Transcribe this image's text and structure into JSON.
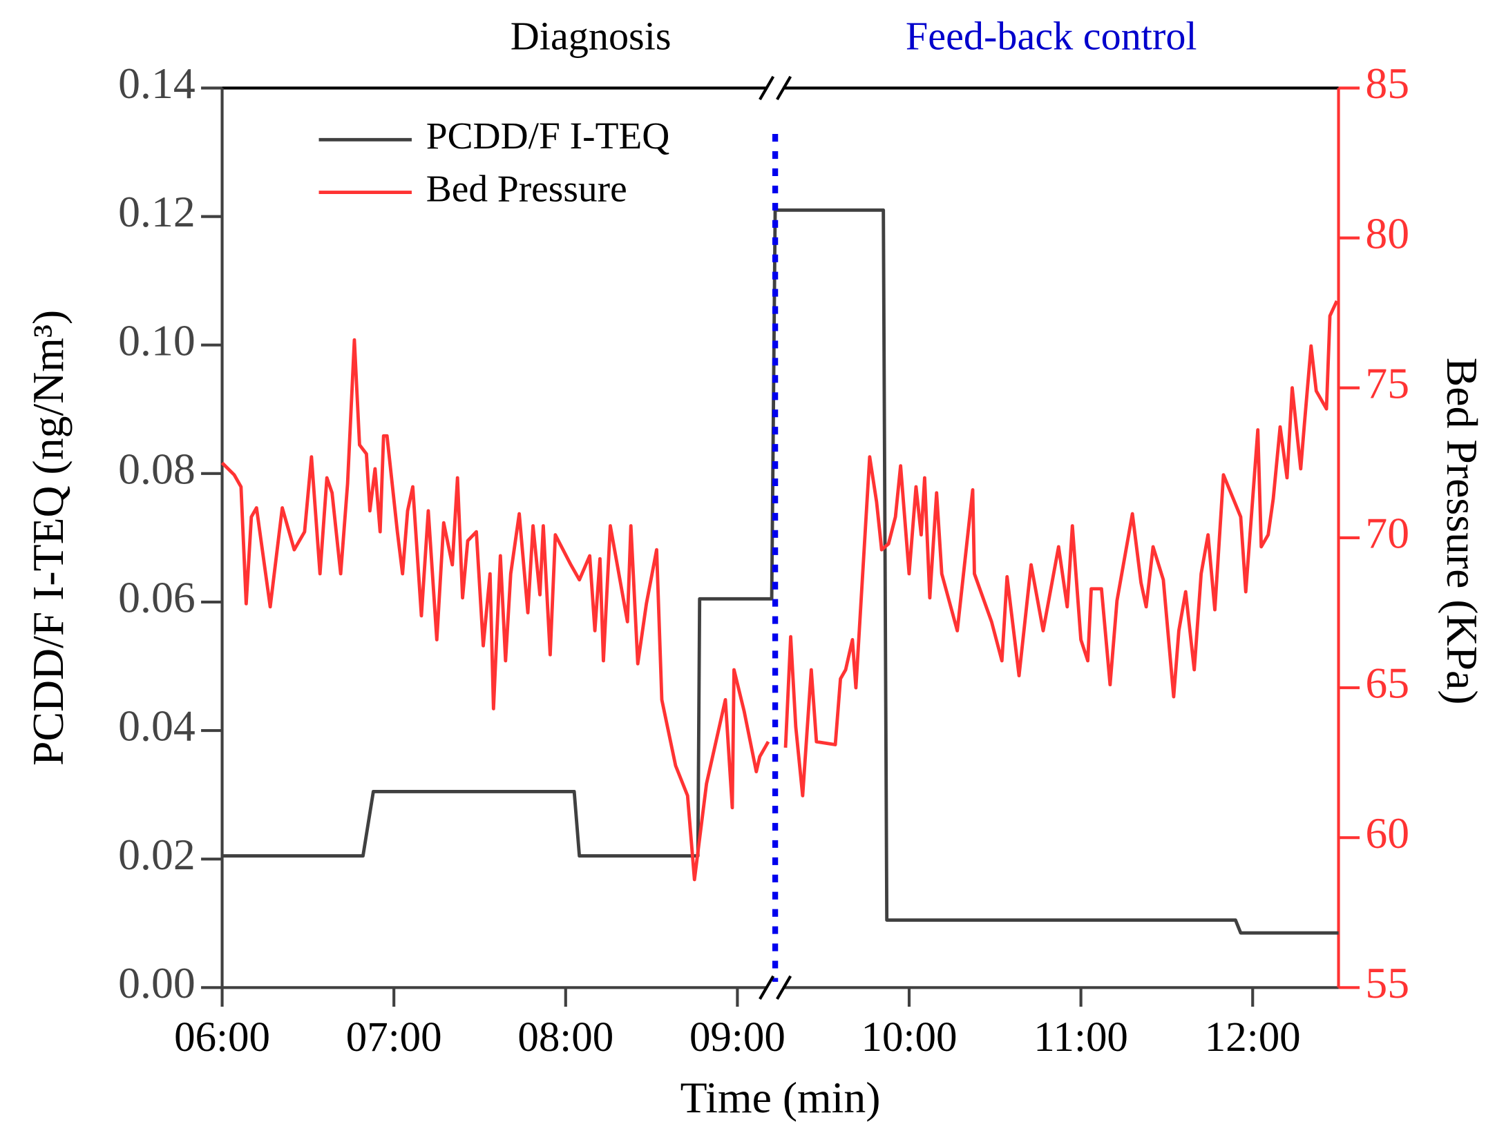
{
  "chart_data": {
    "type": "line",
    "x_label": "Time (min)",
    "y_label": "PCDD/F I-TEQ (ng/Nm³)",
    "y2_label": "Bed Pressure (KPa)",
    "annotations": [
      {
        "text": "Diagnosis",
        "color": "#000000"
      },
      {
        "text": "Feed-back control",
        "color": "#0000cc"
      }
    ],
    "divider_x": 9.22,
    "divider_color": "#0000ee",
    "xlim": [
      6,
      12.5
    ],
    "xticks": [
      {
        "value": 6,
        "label": "06:00"
      },
      {
        "value": 7,
        "label": "07:00"
      },
      {
        "value": 8,
        "label": "08:00"
      },
      {
        "value": 9,
        "label": "09:00"
      },
      {
        "value": 10,
        "label": "10:00"
      },
      {
        "value": 11,
        "label": "11:00"
      },
      {
        "value": 12,
        "label": "12:00"
      }
    ],
    "ylim": [
      0,
      0.14
    ],
    "yticks": [
      {
        "value": 0,
        "label": "0.00"
      },
      {
        "value": 0.02,
        "label": "0.02"
      },
      {
        "value": 0.04,
        "label": "0.04"
      },
      {
        "value": 0.06,
        "label": "0.06"
      },
      {
        "value": 0.08,
        "label": "0.08"
      },
      {
        "value": 0.1,
        "label": "0.10"
      },
      {
        "value": 0.12,
        "label": "0.12"
      },
      {
        "value": 0.14,
        "label": "0.14"
      }
    ],
    "y2lim": [
      55,
      85
    ],
    "y2ticks": [
      55,
      60,
      65,
      70,
      75,
      80,
      85
    ],
    "legend": "upper left",
    "series": [
      {
        "name": "PCDD/F I-TEQ",
        "color": "#404040",
        "axis": "y",
        "x": [
          6.0,
          6.82,
          6.88,
          8.05,
          8.08,
          8.77,
          8.78,
          9.2,
          9.22,
          9.85,
          9.87,
          11.9,
          11.93,
          12.5
        ],
        "values": [
          0.0205,
          0.0205,
          0.0305,
          0.0305,
          0.0205,
          0.0205,
          0.0605,
          0.0605,
          0.121,
          0.121,
          0.0105,
          0.0105,
          0.0085,
          0.0085
        ]
      },
      {
        "name": "Bed Pressure",
        "color": "#ff3333",
        "axis": "y2",
        "x": [
          6.0,
          6.07,
          6.11,
          6.14,
          6.17,
          6.2,
          6.28,
          6.35,
          6.42,
          6.48,
          6.52,
          6.57,
          6.61,
          6.64,
          6.69,
          6.73,
          6.77,
          6.8,
          6.84,
          6.86,
          6.89,
          6.92,
          6.94,
          6.96,
          7.02,
          7.05,
          7.08,
          7.11,
          7.16,
          7.2,
          7.25,
          7.29,
          7.34,
          7.37,
          7.4,
          7.43,
          7.48,
          7.52,
          7.56,
          7.58,
          7.62,
          7.65,
          7.68,
          7.73,
          7.78,
          7.81,
          7.85,
          7.87,
          7.91,
          7.94,
          8.03,
          8.08,
          8.14,
          8.17,
          8.2,
          8.22,
          8.26,
          8.36,
          8.38,
          8.42,
          8.47,
          8.53,
          8.56,
          8.64,
          8.71,
          8.75,
          8.82,
          8.93,
          8.97,
          8.98,
          9.04,
          9.11,
          9.13,
          9.18,
          null,
          9.28,
          9.31,
          9.34,
          9.38,
          9.43,
          9.46,
          9.57,
          9.6,
          9.63,
          9.67,
          9.69,
          9.77,
          9.81,
          9.84,
          9.88,
          9.92,
          9.95,
          10.0,
          10.04,
          10.07,
          10.09,
          10.12,
          10.16,
          10.19,
          10.28,
          10.37,
          10.38,
          10.48,
          10.54,
          10.57,
          10.64,
          10.71,
          10.78,
          10.87,
          10.92,
          10.95,
          11.0,
          11.04,
          11.06,
          11.12,
          11.17,
          11.21,
          11.3,
          11.35,
          11.38,
          11.42,
          11.48,
          11.54,
          11.57,
          11.61,
          11.66,
          11.7,
          11.74,
          11.78,
          11.83,
          11.93,
          11.96,
          12.03,
          12.05,
          12.09,
          12.12,
          12.16,
          12.2,
          12.23,
          12.28,
          12.3,
          12.34,
          12.37,
          12.43,
          12.45,
          12.49
        ],
        "values": [
          72.5,
          72.1,
          71.7,
          67.8,
          70.7,
          71.0,
          67.7,
          71.0,
          69.6,
          70.2,
          72.7,
          68.8,
          72.0,
          71.5,
          68.8,
          71.8,
          76.6,
          73.1,
          72.8,
          70.9,
          72.3,
          70.2,
          73.4,
          73.4,
          70.2,
          68.8,
          70.9,
          71.7,
          67.4,
          70.9,
          66.6,
          70.5,
          69.1,
          72.0,
          68.0,
          69.9,
          70.2,
          66.4,
          68.8,
          64.3,
          69.4,
          65.9,
          68.8,
          70.8,
          67.5,
          70.4,
          68.1,
          70.4,
          66.1,
          70.1,
          69.1,
          68.6,
          69.4,
          66.9,
          69.3,
          65.9,
          70.4,
          67.2,
          70.4,
          65.8,
          67.8,
          69.6,
          64.6,
          62.4,
          61.4,
          58.6,
          61.8,
          64.6,
          61.0,
          65.6,
          64.2,
          62.2,
          62.7,
          63.2,
          null,
          63.0,
          66.7,
          63.7,
          61.4,
          65.6,
          63.2,
          63.1,
          65.3,
          65.6,
          66.6,
          65.0,
          72.7,
          71.2,
          69.6,
          69.8,
          70.7,
          72.4,
          68.8,
          71.7,
          70.1,
          72.0,
          68.0,
          71.5,
          68.8,
          66.9,
          71.6,
          68.8,
          67.2,
          65.9,
          68.7,
          65.4,
          69.1,
          66.9,
          69.7,
          67.7,
          70.4,
          66.6,
          65.9,
          68.3,
          68.3,
          65.1,
          67.9,
          70.8,
          68.5,
          67.7,
          69.7,
          68.6,
          64.7,
          66.9,
          68.2,
          65.6,
          68.8,
          70.1,
          67.6,
          72.1,
          70.7,
          68.2,
          73.6,
          69.7,
          70.1,
          71.3,
          73.7,
          72.0,
          75.0,
          72.3,
          73.7,
          76.4,
          74.9,
          74.3,
          77.4,
          77.9
        ]
      }
    ]
  }
}
